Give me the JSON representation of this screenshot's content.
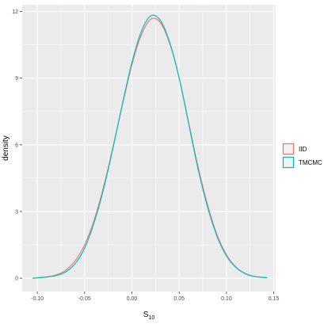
{
  "chart_data": {
    "type": "line",
    "title": "",
    "xlabel": "S",
    "xlabel_subscript": "10",
    "ylabel": "density",
    "xlim": [
      -0.116,
      0.152
    ],
    "ylim": [
      -0.6,
      12.3
    ],
    "x_ticks": [
      -0.1,
      -0.05,
      0.0,
      0.05,
      0.1,
      0.15
    ],
    "x_tick_labels": [
      "-0.10",
      "-0.05",
      "0.00",
      "0.05",
      "0.10",
      "0.15"
    ],
    "y_ticks": [
      0,
      3,
      6,
      9,
      12
    ],
    "y_tick_labels": [
      "0",
      "3",
      "6",
      "9",
      "12"
    ],
    "grid": true,
    "panel_background": "#ebebeb",
    "legend_position": "right",
    "series": [
      {
        "name": "IID",
        "color": "#f8766d",
        "x": [
          -0.105,
          -0.09,
          -0.08,
          -0.07,
          -0.06,
          -0.05,
          -0.04,
          -0.03,
          -0.02,
          -0.01,
          0.0,
          0.01,
          0.02,
          0.03,
          0.04,
          0.05,
          0.06,
          0.07,
          0.08,
          0.09,
          0.1,
          0.11,
          0.12,
          0.13,
          0.143
        ],
        "y": [
          0.0,
          0.06,
          0.15,
          0.36,
          0.78,
          1.5,
          2.6,
          4.1,
          5.9,
          7.8,
          9.6,
          10.95,
          11.65,
          11.5,
          10.55,
          9.0,
          7.0,
          5.0,
          3.3,
          1.95,
          1.05,
          0.5,
          0.21,
          0.08,
          0.02
        ]
      },
      {
        "name": "TMCMC",
        "color": "#00bfc4",
        "x": [
          -0.105,
          -0.09,
          -0.08,
          -0.07,
          -0.06,
          -0.05,
          -0.04,
          -0.03,
          -0.02,
          -0.01,
          0.0,
          0.01,
          0.02,
          0.03,
          0.04,
          0.05,
          0.06,
          0.07,
          0.08,
          0.09,
          0.1,
          0.11,
          0.12,
          0.13,
          0.143
        ],
        "y": [
          0.0,
          0.05,
          0.12,
          0.28,
          0.65,
          1.35,
          2.5,
          4.0,
          5.85,
          7.85,
          9.7,
          11.1,
          11.8,
          11.6,
          10.6,
          9.0,
          6.95,
          4.9,
          3.2,
          1.88,
          1.0,
          0.48,
          0.2,
          0.07,
          0.02
        ]
      }
    ]
  }
}
